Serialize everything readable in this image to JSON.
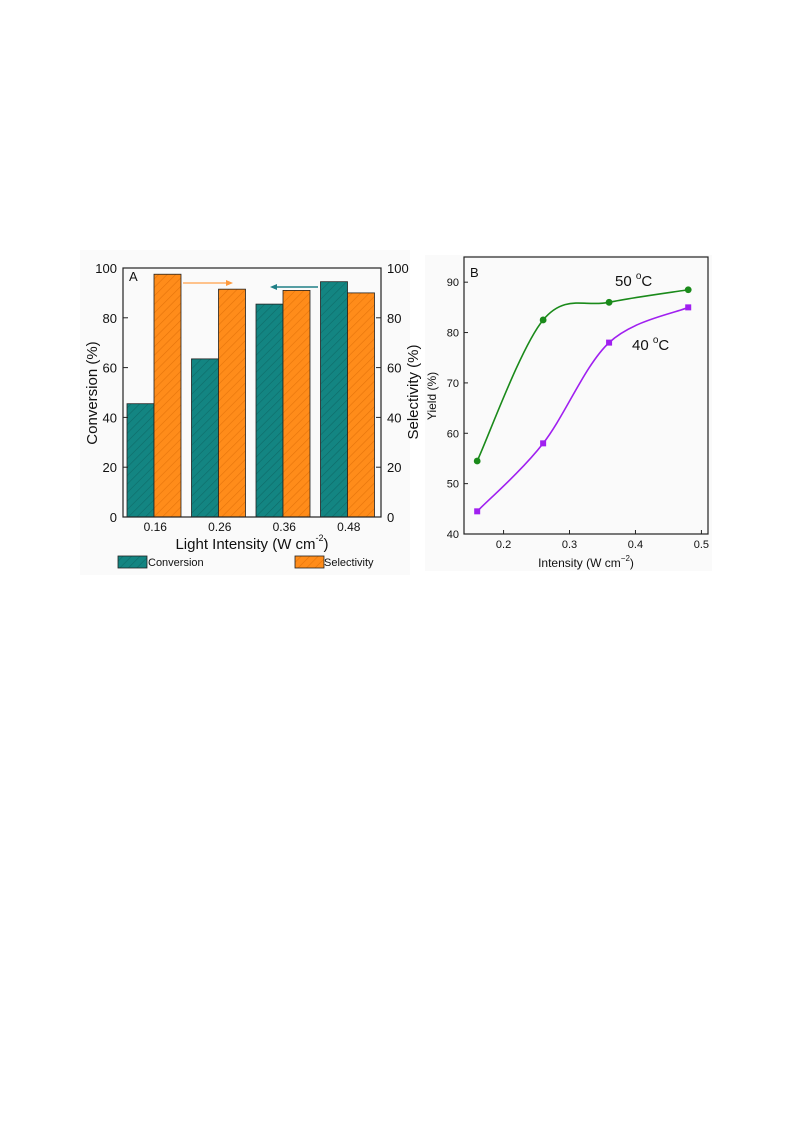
{
  "chart_data": [
    {
      "type": "bar",
      "panel_label": "A",
      "categories": [
        "0.16",
        "0.26",
        "0.36",
        "0.48"
      ],
      "series": [
        {
          "name": "Conversion",
          "values": [
            45.5,
            63.5,
            85.5,
            94.5
          ],
          "color": "#138582",
          "axis": "left"
        },
        {
          "name": "Selectivity",
          "values": [
            97.5,
            91.5,
            91.0,
            90.0
          ],
          "color": "#ff8c1a",
          "axis": "right"
        }
      ],
      "xlabel": "Light Intensity (W cm",
      "xlabel_sup": "-2",
      "xlabel_close": ")",
      "ylabel": "Conversion (%)",
      "y2label": "Selectivity (%)",
      "ylim": [
        0,
        100
      ],
      "y2lim": [
        0,
        100
      ],
      "yticks": [
        "0",
        "20",
        "40",
        "60",
        "80",
        "100"
      ],
      "y2ticks": [
        "0",
        "20",
        "40",
        "60",
        "80",
        "100"
      ],
      "legend_position": "bottom",
      "arrows": [
        {
          "direction": "right",
          "color": "#ff9a3c",
          "refers_to": "Selectivity"
        },
        {
          "direction": "left",
          "color": "#1f7f86",
          "refers_to": "Conversion"
        }
      ]
    },
    {
      "type": "scatter",
      "panel_label": "B",
      "series": [
        {
          "name": "50 °C",
          "label_main": "50 ",
          "label_sup": "o",
          "label_unit": "C",
          "marker": "circle",
          "color": "#1a8a1a",
          "x": [
            0.16,
            0.26,
            0.36,
            0.48
          ],
          "y": [
            54.5,
            82.5,
            86.0,
            88.5
          ]
        },
        {
          "name": "40 °C",
          "label_main": "40 ",
          "label_sup": "o",
          "label_unit": "C",
          "marker": "square",
          "color": "#a020f0",
          "x": [
            0.16,
            0.26,
            0.36,
            0.48
          ],
          "y": [
            44.5,
            58.0,
            78.0,
            85.0
          ]
        }
      ],
      "xlabel": "Intensity (W cm",
      "xlabel_sup": "−2",
      "xlabel_close": ")",
      "ylabel": "Yield (%)",
      "xlim": [
        0.14,
        0.51
      ],
      "ylim": [
        40,
        95
      ],
      "xticks": [
        0.2,
        0.3,
        0.4,
        0.5
      ],
      "yticks": [
        40,
        50,
        60,
        70,
        80,
        90
      ],
      "fit_curves": true
    }
  ]
}
